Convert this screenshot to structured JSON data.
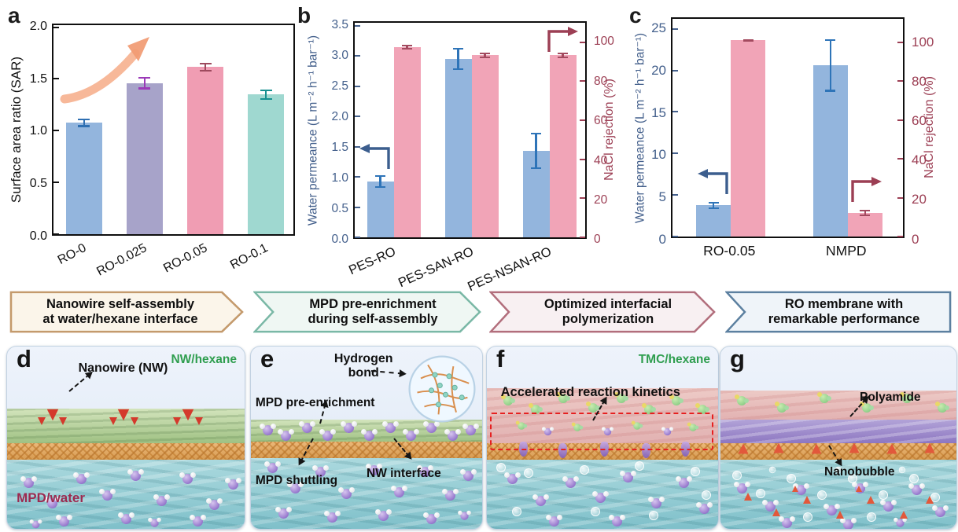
{
  "figure": {
    "panel_labels": {
      "d": "d",
      "e": "e",
      "f": "f",
      "g": "g"
    }
  },
  "chart_data": [
    {
      "type": "bar",
      "panel_label": "a",
      "categories": [
        "RO-0",
        "RO-0.025",
        "RO-0.05",
        "RO-0.1"
      ],
      "series": [
        {
          "name": "Surface area ratio",
          "axis": "left",
          "color": [
            "#93b5dd",
            "#a7a3c9",
            "#f09db3",
            "#9fd8d0"
          ],
          "error_color": [
            "#2e6fb2",
            "#9b3ab8",
            "#9e4a5e",
            "#169090"
          ],
          "values": [
            1.06,
            1.44,
            1.59,
            1.33
          ],
          "errors": [
            0.04,
            0.06,
            0.04,
            0.05
          ]
        }
      ],
      "left_axis": {
        "label": "Surface area ratio (SAR)",
        "ticks": [
          0,
          0.5,
          1,
          1.5,
          2
        ],
        "tick_labels": [
          "0.0",
          "0.5",
          "1.0",
          "1.5",
          "2.0"
        ],
        "max": 2.02,
        "color": "#111111"
      },
      "right_axis": null,
      "annotation": "upward curved trend arrow"
    },
    {
      "type": "bar",
      "panel_label": "b",
      "categories": [
        "PES-RO",
        "PES-SAN-RO",
        "PES-NSAN-RO"
      ],
      "series": [
        {
          "name": "Water permeance",
          "axis": "left",
          "color": "#93b5dd",
          "error_color": "#2e74b8",
          "values": [
            0.91,
            2.91,
            1.41
          ],
          "errors": [
            0.1,
            0.18,
            0.3
          ]
        },
        {
          "name": "NaCl rejection",
          "axis": "right",
          "color": "#f1a4b7",
          "error_color": "#a34a5f",
          "values": [
            96,
            92,
            92
          ],
          "errors": [
            1.2,
            1.5,
            1.5
          ]
        }
      ],
      "left_axis": {
        "label": "Water permeance (L m⁻² h⁻¹ bar⁻¹)",
        "ticks": [
          0,
          0.5,
          1,
          1.5,
          2,
          2.5,
          3,
          3.5
        ],
        "tick_labels": [
          "0.0",
          "0.5",
          "1.0",
          "1.5",
          "2.0",
          "2.5",
          "3.0",
          "3.5"
        ],
        "max": 3.55,
        "color": "#44608c"
      },
      "right_axis": {
        "label": "NaCl rejection (%)",
        "ticks": [
          0,
          20,
          40,
          60,
          80,
          100
        ],
        "tick_labels": [
          "0",
          "20",
          "40",
          "60",
          "80",
          "100"
        ],
        "max": 110,
        "color": "#9c3f54"
      }
    },
    {
      "type": "bar",
      "panel_label": "c",
      "categories": [
        "RO-0.05",
        "NMPD"
      ],
      "series": [
        {
          "name": "Water permeance",
          "axis": "left",
          "color": "#93b5dd",
          "error_color": "#2e74b8",
          "values": [
            3.7,
            20.3
          ],
          "errors": [
            0.45,
            3.1
          ]
        },
        {
          "name": "NaCl rejection",
          "axis": "right",
          "color": "#f1a4b7",
          "error_color": "#a34a5f",
          "values": [
            99.5,
            12
          ],
          "errors": [
            0.4,
            1.6
          ]
        }
      ],
      "left_axis": {
        "label": "Water permeance (L m⁻² h⁻¹ bar⁻¹)",
        "ticks": [
          0,
          5,
          10,
          15,
          20,
          25
        ],
        "tick_labels": [
          "0",
          "5",
          "10",
          "15",
          "20",
          "25"
        ],
        "max": 26.2,
        "color": "#44608c"
      },
      "right_axis": {
        "label": "NaCl rejection (%)",
        "ticks": [
          0,
          20,
          40,
          60,
          80,
          100
        ],
        "tick_labels": [
          "0",
          "20",
          "40",
          "60",
          "80",
          "100"
        ],
        "max": 112,
        "color": "#9c3f54"
      }
    }
  ],
  "banners": [
    {
      "line1": "Nanowire self-assembly",
      "line2": "at water/hexane interface",
      "border": "#c49a6c",
      "fill": "#fbf5ea"
    },
    {
      "line1": "MPD pre-enrichment",
      "line2": "during self-assembly",
      "border": "#7ab8a6",
      "fill": "#eff7f3"
    },
    {
      "line1": "Optimized interfacial",
      "line2": "polymerization",
      "border": "#b26e7c",
      "fill": "#f8f0f2"
    },
    {
      "line1": "RO membrane with",
      "line2": "remarkable performance",
      "border": "#5c80a0",
      "fill": "#eff4f9"
    }
  ],
  "panels": {
    "d": {
      "label": "d",
      "top_right_label": "NW/hexane",
      "nanowire_label": "Nanowire (NW)",
      "bottom_left_label": "MPD/water"
    },
    "e": {
      "label": "e",
      "hydrogen_bond": "Hydrogen bond",
      "mpd_pre_enrichment": "MPD pre-enrichment",
      "mpd_shuttling": "MPD shuttling",
      "nw_interface": "NW interface"
    },
    "f": {
      "label": "f",
      "top_right_label": "TMC/hexane",
      "annotation": "Accelerated reaction kinetics"
    },
    "g": {
      "label": "g",
      "polyamide_label": "Polyamide",
      "nanobubble_label": "Nanobubble"
    }
  },
  "colors": {
    "permeance_blue": "#93b5dd",
    "rejection_pink": "#f1a4b7",
    "left_axis_blue": "#44608c",
    "right_axis_maroon": "#9c3f54",
    "hexane_label_green": "#2f9e4f",
    "mpd_water_label_maroon": "#9c2a50",
    "trend_arrow_orange": "#f19a72",
    "red_dashed_box": "#e62020"
  },
  "icons": {
    "trend_up_arrow": "curved upward arrow",
    "left_axis_pointer": "elbow arrow pointing left",
    "right_axis_pointer": "elbow arrow pointing right",
    "dashed_annotation_arrow": "dashed arrow with solid head"
  }
}
